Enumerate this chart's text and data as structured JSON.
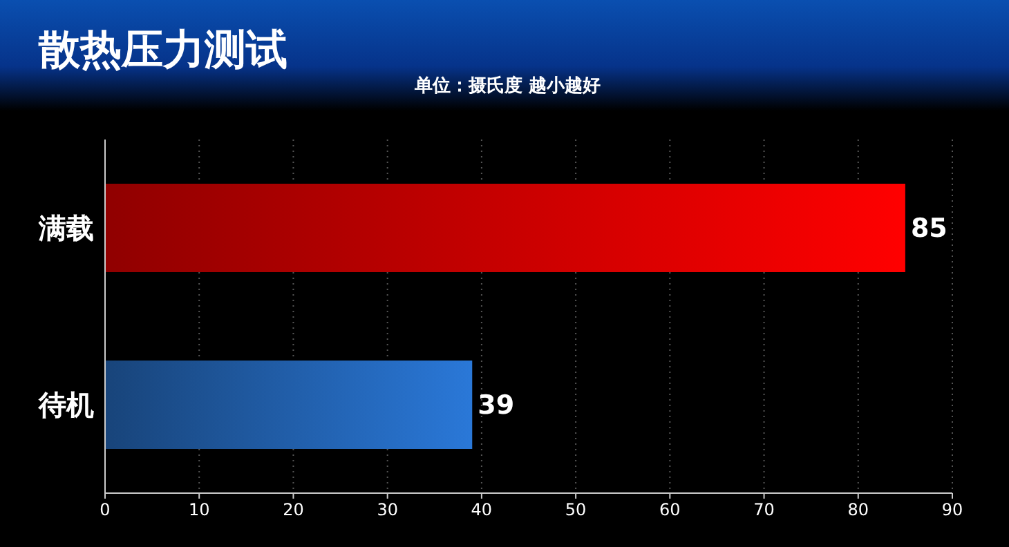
{
  "chart_data": {
    "type": "bar",
    "orientation": "horizontal",
    "title": "散热压力测试",
    "subtitle": "单位：摄氏度 越小越好",
    "categories": [
      "满载",
      "待机"
    ],
    "values": [
      85,
      39
    ],
    "colors": [
      "#ff0000",
      "#2a78d8"
    ],
    "xlim": [
      0,
      90
    ],
    "xticks": [
      0,
      10,
      20,
      30,
      40,
      50,
      60,
      70,
      80,
      90
    ],
    "grid": "x",
    "data_labels": true
  }
}
